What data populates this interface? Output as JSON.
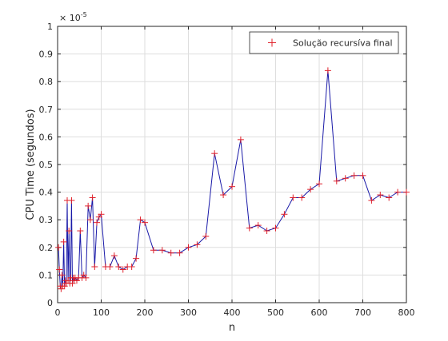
{
  "chart_data": {
    "type": "line",
    "xlabel": "n",
    "ylabel": "CPU Time (segundos)",
    "y_exponent_label": "× 10",
    "y_exponent_power": "-5",
    "xlim": [
      0,
      800
    ],
    "ylim": [
      0,
      1
    ],
    "x_ticks": [
      "0",
      "100",
      "200",
      "300",
      "400",
      "500",
      "600",
      "700",
      "800"
    ],
    "y_ticks": [
      "0",
      "0.1",
      "0.2",
      "0.3",
      "0.4",
      "0.5",
      "0.6",
      "0.7",
      "0.8",
      "0.9",
      "1"
    ],
    "grid": true,
    "legend_position": "top-right",
    "line_color": "#1a1aa8",
    "marker_color": "#e0202a",
    "marker": "+",
    "series": [
      {
        "name": "Solução recursíva final",
        "x": [
          2,
          4,
          6,
          8,
          10,
          12,
          14,
          16,
          18,
          20,
          22,
          24,
          26,
          28,
          30,
          32,
          34,
          36,
          38,
          40,
          44,
          48,
          52,
          56,
          60,
          65,
          70,
          75,
          80,
          85,
          90,
          95,
          100,
          110,
          120,
          130,
          140,
          150,
          160,
          170,
          180,
          190,
          200,
          220,
          240,
          260,
          280,
          300,
          320,
          340,
          360,
          380,
          400,
          420,
          440,
          460,
          480,
          500,
          520,
          540,
          560,
          580,
          600,
          620,
          640,
          660,
          680,
          700,
          720,
          740,
          760,
          780,
          800
        ],
        "y": [
          0.2,
          0.12,
          0.06,
          0.05,
          0.1,
          0.06,
          0.22,
          0.06,
          0.08,
          0.07,
          0.37,
          0.08,
          0.26,
          0.07,
          0.09,
          0.37,
          0.07,
          0.09,
          0.08,
          0.09,
          0.08,
          0.09,
          0.26,
          0.09,
          0.1,
          0.09,
          0.35,
          0.3,
          0.38,
          0.13,
          0.29,
          0.31,
          0.32,
          0.13,
          0.13,
          0.17,
          0.13,
          0.12,
          0.13,
          0.13,
          0.16,
          0.3,
          0.29,
          0.19,
          0.19,
          0.18,
          0.18,
          0.2,
          0.21,
          0.24,
          0.54,
          0.39,
          0.42,
          0.59,
          0.27,
          0.28,
          0.26,
          0.27,
          0.32,
          0.38,
          0.38,
          0.41,
          0.43,
          0.84,
          0.44,
          0.45,
          0.46,
          0.46,
          0.37,
          0.39,
          0.38,
          0.4,
          0.4
        ]
      }
    ]
  }
}
